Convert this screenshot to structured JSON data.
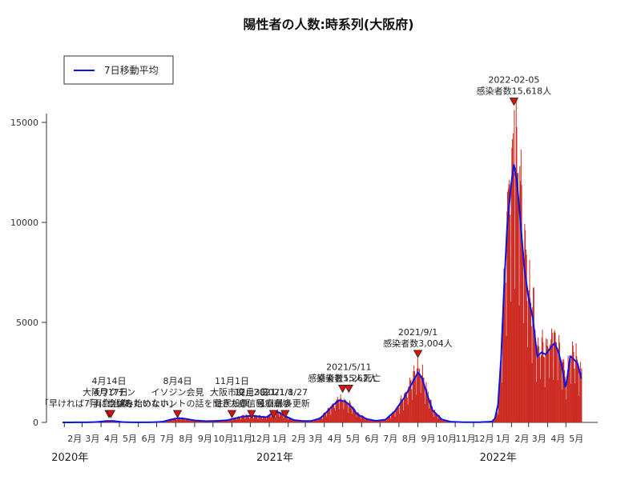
{
  "chart_data": {
    "type": "bar",
    "title": "陽性者の人数:時系列(大阪府)",
    "legend": {
      "label": "7日移動平均",
      "position": "top-left",
      "line_color": "#0a14e6"
    },
    "colors": {
      "bar": "#cc2b22",
      "line": "#0a14e6",
      "marker": "#e01010"
    },
    "x_start": "2020-01-29",
    "x_end": "2022-06-22",
    "ylim": [
      0,
      16000
    ],
    "yticks": [
      0,
      5000,
      10000,
      15000
    ],
    "ytick_labels": [
      "0",
      "5000",
      "10000",
      "15000"
    ],
    "month_ticks": [
      {
        "date": "2020-02-01",
        "label": "2月"
      },
      {
        "date": "2020-03-01",
        "label": "3月"
      },
      {
        "date": "2020-04-01",
        "label": "4月"
      },
      {
        "date": "2020-05-01",
        "label": "5月"
      },
      {
        "date": "2020-06-01",
        "label": "6月"
      },
      {
        "date": "2020-07-01",
        "label": "7月"
      },
      {
        "date": "2020-08-01",
        "label": "8月"
      },
      {
        "date": "2020-09-01",
        "label": "9月"
      },
      {
        "date": "2020-10-01",
        "label": "10月"
      },
      {
        "date": "2020-11-01",
        "label": "11月"
      },
      {
        "date": "2020-12-01",
        "label": "12月"
      },
      {
        "date": "2021-01-01",
        "label": "1月"
      },
      {
        "date": "2021-02-01",
        "label": "2月"
      },
      {
        "date": "2021-03-01",
        "label": "3月"
      },
      {
        "date": "2021-04-01",
        "label": "4月"
      },
      {
        "date": "2021-05-01",
        "label": "5月"
      },
      {
        "date": "2021-06-01",
        "label": "6月"
      },
      {
        "date": "2021-07-01",
        "label": "7月"
      },
      {
        "date": "2021-08-01",
        "label": "8月"
      },
      {
        "date": "2021-09-01",
        "label": "9月"
      },
      {
        "date": "2021-10-01",
        "label": "10月"
      },
      {
        "date": "2021-11-01",
        "label": "11月"
      },
      {
        "date": "2021-12-01",
        "label": "12月"
      },
      {
        "date": "2022-01-01",
        "label": "1月"
      },
      {
        "date": "2022-02-01",
        "label": "2月"
      },
      {
        "date": "2022-03-01",
        "label": "3月"
      },
      {
        "date": "2022-04-01",
        "label": "4月"
      },
      {
        "date": "2022-05-01",
        "label": "5月"
      }
    ],
    "year_labels": [
      {
        "date": "2020-02-01",
        "label": "2020年"
      },
      {
        "date": "2021-01-01",
        "label": "2021年"
      },
      {
        "date": "2022-01-01",
        "label": "2022年"
      }
    ],
    "moving_average_7day": [
      [
        "2020-01-29",
        0
      ],
      [
        "2020-03-10",
        5
      ],
      [
        "2020-03-25",
        20
      ],
      [
        "2020-04-10",
        70
      ],
      [
        "2020-04-20",
        75
      ],
      [
        "2020-05-05",
        20
      ],
      [
        "2020-05-20",
        3
      ],
      [
        "2020-06-20",
        5
      ],
      [
        "2020-07-10",
        30
      ],
      [
        "2020-07-25",
        150
      ],
      [
        "2020-08-05",
        210
      ],
      [
        "2020-08-15",
        190
      ],
      [
        "2020-09-01",
        100
      ],
      [
        "2020-09-20",
        60
      ],
      [
        "2020-10-10",
        80
      ],
      [
        "2020-10-25",
        110
      ],
      [
        "2020-11-05",
        200
      ],
      [
        "2020-11-20",
        300
      ],
      [
        "2020-12-05",
        330
      ],
      [
        "2020-12-20",
        280
      ],
      [
        "2020-12-28",
        260
      ],
      [
        "2021-01-05",
        450
      ],
      [
        "2021-01-12",
        540
      ],
      [
        "2021-01-20",
        450
      ],
      [
        "2021-01-28",
        300
      ],
      [
        "2021-02-10",
        120
      ],
      [
        "2021-02-25",
        70
      ],
      [
        "2021-03-10",
        70
      ],
      [
        "2021-03-25",
        200
      ],
      [
        "2021-04-05",
        520
      ],
      [
        "2021-04-15",
        850
      ],
      [
        "2021-04-25",
        1110
      ],
      [
        "2021-05-05",
        1050
      ],
      [
        "2021-05-15",
        800
      ],
      [
        "2021-05-25",
        400
      ],
      [
        "2021-06-10",
        160
      ],
      [
        "2021-06-25",
        80
      ],
      [
        "2021-07-10",
        140
      ],
      [
        "2021-07-25",
        550
      ],
      [
        "2021-08-10",
        1250
      ],
      [
        "2021-08-25",
        2100
      ],
      [
        "2021-09-01",
        2500
      ],
      [
        "2021-09-08",
        2200
      ],
      [
        "2021-09-15",
        1500
      ],
      [
        "2021-09-25",
        600
      ],
      [
        "2021-10-10",
        150
      ],
      [
        "2021-10-25",
        30
      ],
      [
        "2021-11-15",
        12
      ],
      [
        "2021-12-10",
        10
      ],
      [
        "2021-12-31",
        40
      ],
      [
        "2022-01-05",
        200
      ],
      [
        "2022-01-10",
        900
      ],
      [
        "2022-01-15",
        3200
      ],
      [
        "2022-01-20",
        6800
      ],
      [
        "2022-01-25",
        9800
      ],
      [
        "2022-01-31",
        11800
      ],
      [
        "2022-02-05",
        12900
      ],
      [
        "2022-02-10",
        12000
      ],
      [
        "2022-02-15",
        10300
      ],
      [
        "2022-02-22",
        7700
      ],
      [
        "2022-03-01",
        6200
      ],
      [
        "2022-03-08",
        5200
      ],
      [
        "2022-03-15",
        3300
      ],
      [
        "2022-03-22",
        3500
      ],
      [
        "2022-03-29",
        3400
      ],
      [
        "2022-04-05",
        3700
      ],
      [
        "2022-04-12",
        3950
      ],
      [
        "2022-04-18",
        3600
      ],
      [
        "2022-04-24",
        2900
      ],
      [
        "2022-04-30",
        1750
      ],
      [
        "2022-05-03",
        2200
      ],
      [
        "2022-05-08",
        3300
      ],
      [
        "2022-05-14",
        3150
      ],
      [
        "2022-05-20",
        2950
      ],
      [
        "2022-05-26",
        2200
      ]
    ],
    "daily_peak": {
      "date": "2022-02-05",
      "value": 15618
    },
    "annotations": [
      {
        "date": "2020-04-14",
        "lines": [
          "4月14日",
          "大阪ワクチン",
          "「早ければ7月に治験を始めたい」"
        ],
        "marker_value": 0
      },
      {
        "date": "2020-04-17",
        "lines": [
          "4月17日",
          "「両会治療」"
        ],
        "marker_value": 0
      },
      {
        "date": "2020-08-04",
        "lines": [
          "8月4日",
          "イソジン会見",
          "「ウソみたいなホントの話を聞きたい」"
        ],
        "marker_value": 0
      },
      {
        "date": "2020-11-01",
        "lines": [
          "11月1日",
          "大阪市廃止",
          "住民投票"
        ],
        "marker_value": 0
      },
      {
        "date": "2020-12-03",
        "lines": [
          "12月3日",
          "赤信号"
        ],
        "marker_value": 0
      },
      {
        "date": "2021-01-08",
        "lines": [
          "2021/1/8",
          "医療崩壊"
        ],
        "marker_value": 0
      },
      {
        "date": "2021-01-27",
        "lines": [
          "2021/1/27",
          "1日最多更新"
        ],
        "marker_value": 0
      },
      {
        "date": "2021-05-01",
        "lines": [
          "感染者数1,262人"
        ],
        "marker_value": 1262
      },
      {
        "date": "2021-05-11",
        "lines": [
          "2021/5/11",
          "感染者55人死亡"
        ],
        "marker_value": 1262
      },
      {
        "date": "2021-09-01",
        "lines": [
          "2021/9/1",
          "感染者数3,004人"
        ],
        "marker_value": 3004
      },
      {
        "date": "2022-02-05",
        "lines": [
          "2022-02-05",
          "感染者数15,618人"
        ],
        "marker_value": 15618
      }
    ]
  }
}
